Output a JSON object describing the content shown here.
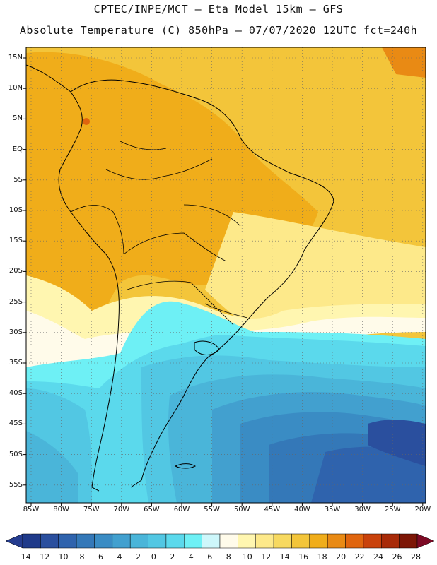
{
  "header": {
    "line1": "CPTEC/INPE/MCT –  Eta Model 15km – GFS",
    "line2": "Absolute Temperature (C) 850hPa – 07/07/2020 12UTC fct=240h"
  },
  "axes": {
    "lat_labels": [
      "15N",
      "10N",
      "5N",
      "EQ",
      "5S",
      "10S",
      "15S",
      "20S",
      "25S",
      "30S",
      "35S",
      "40S",
      "45S",
      "50S",
      "55S"
    ],
    "lon_labels": [
      "85W",
      "80W",
      "75W",
      "70W",
      "65W",
      "60W",
      "55W",
      "50W",
      "45W",
      "40W",
      "35W",
      "30W",
      "25W",
      "20W"
    ]
  },
  "colorbar": {
    "labels": [
      "-14",
      "-12",
      "-10",
      "-8",
      "-6",
      "-4",
      "-2",
      "0",
      "2",
      "4",
      "6",
      "8",
      "10",
      "12",
      "14",
      "16",
      "18",
      "20",
      "22",
      "24",
      "26",
      "28"
    ],
    "colors": [
      "#1f3a8a",
      "#2a4f9e",
      "#2f63ad",
      "#3478b8",
      "#3a8cc4",
      "#42a0cf",
      "#4ab5d9",
      "#52c7e3",
      "#5bd9ec",
      "#6ef0f5",
      "#cdf7fb",
      "#fffbea",
      "#fff6b0",
      "#fde98a",
      "#f7d960",
      "#f3c53a",
      "#f0ad1a",
      "#e98a14",
      "#e0650e",
      "#c9420b",
      "#a82a08",
      "#7d1606"
    ],
    "min_arrow_color": "#253c8f",
    "max_arrow_color": "#7d0a25"
  },
  "map_data": {
    "variable": "Absolute Temperature (C) 850hPa",
    "lon_range": [
      -85,
      -20
    ],
    "lat_range": [
      -58,
      16
    ]
  }
}
